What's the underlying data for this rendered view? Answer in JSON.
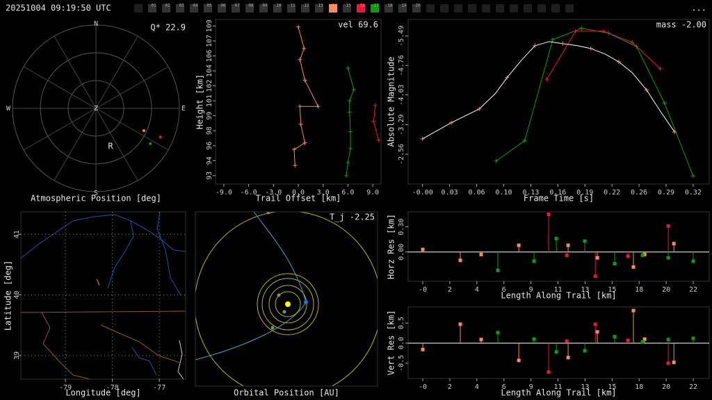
{
  "header": {
    "timestamp": "20251004 09:19:50 UTC",
    "more": "...",
    "cameras": [
      "01",
      "02",
      "03",
      "04",
      "05",
      "06",
      "07",
      "08",
      "09",
      "10",
      "11",
      "12",
      "13",
      "14",
      "15",
      "16",
      "17",
      "18",
      "19",
      "20"
    ],
    "camera_colors": [
      "#333333",
      "#333333",
      "#333333",
      "#333333",
      "#333333",
      "#333333",
      "#333333",
      "#333333",
      "#333333",
      "#333333",
      "#333333",
      "#333333",
      "#333333",
      "#f98a5e",
      "#333333",
      "#e8173d",
      "#139a13",
      "#333333",
      "#333333",
      "#333333"
    ]
  },
  "chart_data": [
    {
      "type": "polar",
      "xlabel": "Atmospheric Position [deg]",
      "annotation": "Q* 22.9",
      "directions": [
        "N",
        "E",
        "S",
        "W"
      ],
      "zenith_label": "Z",
      "rlim": [
        0,
        90
      ],
      "rticks": [
        30,
        60,
        90
      ],
      "radiant": {
        "label": "R",
        "azimuth": 159,
        "zenith": 44
      },
      "series": [
        {
          "color": "#f98a5e",
          "x": [
            115
          ],
          "values": [
            57
          ]
        },
        {
          "color": "#e8173d",
          "x": [
            114
          ],
          "values": [
            76
          ]
        },
        {
          "color": "#139a13",
          "x": [
            123
          ],
          "values": [
            70
          ]
        }
      ]
    },
    {
      "type": "line",
      "xlabel": "Trail Offset [km]",
      "ylabel": "Height [km]",
      "annotation": "vel 69.6",
      "xlim": [
        -10,
        10
      ],
      "ylim": [
        91.9,
        109.5
      ],
      "xticks": [
        {
          "value": -9,
          "label": "-9.0"
        },
        {
          "value": -6,
          "label": "-6.0"
        },
        {
          "value": -3,
          "label": "-3.0"
        },
        {
          "value": 0,
          "label": "0.0"
        },
        {
          "value": 3,
          "label": "3.0"
        },
        {
          "value": 6,
          "label": "6.0"
        },
        {
          "value": 9,
          "label": "9.0"
        }
      ],
      "yticks": [
        {
          "value": 92.8,
          "label": "93"
        },
        {
          "value": 94.4,
          "label": "94"
        },
        {
          "value": 96.0,
          "label": "96"
        },
        {
          "value": 97.6,
          "label": "98"
        },
        {
          "value": 99.2,
          "label": "99"
        },
        {
          "value": 100.8,
          "label": "101"
        },
        {
          "value": 102.4,
          "label": "102"
        },
        {
          "value": 104.0,
          "label": "104"
        },
        {
          "value": 105.6,
          "label": "106"
        },
        {
          "value": 107.2,
          "label": "107"
        },
        {
          "value": 108.8,
          "label": "109"
        }
      ],
      "series": [
        {
          "color": "#f98a5e",
          "line": true,
          "marker": "+",
          "x": [
            0,
            0.7,
            0.2,
            0.8,
            2.4,
            0.2,
            0.3,
            0.8,
            -0.5,
            -0.4
          ],
          "values": [
            108.7,
            106.4,
            105.2,
            103.0,
            100.2,
            100.2,
            98.3,
            96.3,
            95.6,
            93.9
          ]
        },
        {
          "color": "#139a13",
          "line": true,
          "marker": "+",
          "x": [
            6.0,
            6.7,
            6.2,
            6.2,
            6.3,
            6.3,
            6.0,
            5.8
          ],
          "values": [
            104.3,
            102.0,
            100.8,
            99.6,
            97.5,
            95.7,
            94.2,
            92.8
          ]
        },
        {
          "color": "#e8173d",
          "line": true,
          "marker": "+",
          "x": [
            9.3,
            9.1,
            9.7
          ],
          "values": [
            100.3,
            98.6,
            96.6
          ]
        }
      ]
    },
    {
      "type": "line",
      "xlabel": "Frame Time [s]",
      "ylabel": "Absolute Magnitude",
      "annotation": "mass -2.00",
      "xlim": [
        -0.017,
        0.339
      ],
      "ylim": [
        -1.82,
        -5.9
      ],
      "xticks": [
        {
          "value": 0,
          "label": "-0.00"
        },
        {
          "value": 0.032,
          "label": "0.03"
        },
        {
          "value": 0.064,
          "label": "0.06"
        },
        {
          "value": 0.096,
          "label": "0.10"
        },
        {
          "value": 0.128,
          "label": "0.13"
        },
        {
          "value": 0.16,
          "label": "0.16"
        },
        {
          "value": 0.192,
          "label": "0.19"
        },
        {
          "value": 0.224,
          "label": "0.22"
        },
        {
          "value": 0.256,
          "label": "0.26"
        },
        {
          "value": 0.288,
          "label": "0.29"
        },
        {
          "value": 0.32,
          "label": "0.32"
        }
      ],
      "yticks": [
        -5.49,
        -4.76,
        -4.03,
        -3.29,
        -2.56
      ],
      "series": [
        {
          "color": "#139a13",
          "line": true,
          "marker": "+",
          "x": [
            0.087,
            0.121,
            0.154,
            0.188,
            0.22,
            0.253,
            0.286,
            0.32
          ],
          "values": [
            -2.39,
            -2.9,
            -5.4,
            -5.68,
            -5.56,
            -5.23,
            -3.83,
            -2.02
          ]
        },
        {
          "color": "#e8173d",
          "line": true,
          "marker": "+",
          "x": [
            0.147,
            0.181,
            0.214,
            0.248,
            0.281
          ],
          "values": [
            -4.42,
            -5.61,
            -5.61,
            -5.33,
            -4.68
          ]
        },
        {
          "color": "#ffffff",
          "line": true,
          "x": [
            0,
            0.034,
            0.067,
            0.086,
            0.1,
            0.117,
            0.133,
            0.15,
            0.166,
            0.183,
            0.199,
            0.216,
            0.232,
            0.248,
            0.265,
            0.281,
            0.298
          ],
          "values": [
            -2.94,
            -3.34,
            -3.68,
            -4.06,
            -4.46,
            -4.89,
            -5.25,
            -5.35,
            -5.3,
            -5.25,
            -5.18,
            -5.04,
            -4.85,
            -4.58,
            -4.15,
            -3.63,
            -3.11
          ]
        },
        {
          "color": "#f98a5e",
          "line": false,
          "marker": "+",
          "x": [
            0,
            0.034,
            0.067,
            0.1,
            0.133,
            0.166,
            0.199,
            0.232,
            0.265,
            0.298
          ],
          "values": [
            -2.94,
            -3.34,
            -3.68,
            -4.46,
            -5.25,
            -5.3,
            -5.18,
            -4.85,
            -4.15,
            -3.11
          ]
        }
      ]
    },
    {
      "type": "map",
      "xlabel": "Longitude [deg]",
      "ylabel": "Latitude [deg]",
      "grid": true,
      "xlim": [
        -79.95,
        -76.44
      ],
      "ylim": [
        38.61,
        41.37
      ],
      "xticks": [
        -79,
        -78,
        -77
      ],
      "yticks": [
        41,
        40,
        39
      ],
      "series": [
        {
          "color": "#f98a5e",
          "line": true,
          "x": [
            -78.33,
            -78.28
          ],
          "values": [
            40.26,
            40.16
          ]
        }
      ]
    },
    {
      "type": "orbit",
      "xlabel": "Orbital Position [AU]",
      "annotation": "T_j -2.25"
    },
    {
      "type": "stem",
      "xlabel": "Length Along Trail [km]",
      "ylabel": "Horz Res [km]",
      "zero_line": true,
      "xlim": [
        -1.4,
        23.31
      ],
      "ylim": [
        -0.35,
        0.48
      ],
      "xticks": [
        {
          "value": -0.2,
          "label": "-0"
        },
        {
          "value": 2.02,
          "label": "2"
        },
        {
          "value": 4.24,
          "label": "4"
        },
        {
          "value": 6.46,
          "label": "6"
        },
        {
          "value": 8.68,
          "label": "9"
        },
        {
          "value": 10.9,
          "label": "11"
        },
        {
          "value": 13.12,
          "label": "13"
        },
        {
          "value": 15.34,
          "label": "15"
        },
        {
          "value": 17.56,
          "label": "18"
        },
        {
          "value": 19.78,
          "label": "20"
        },
        22
      ],
      "yticks": [
        {
          "value": 0.3,
          "label": "0.30"
        },
        {
          "value": 0,
          "label": "0.00"
        }
      ],
      "series": [
        {
          "color": "#f98a5e",
          "x": [
            -0.2,
            2.88,
            4.59,
            7.68,
            11.73,
            14.13,
            17.09,
            18.01,
            20.41
          ],
          "values": [
            0.03,
            -0.1,
            -0.03,
            0.08,
            0.08,
            -0.07,
            -0.18,
            -0.03,
            0.1
          ]
        },
        {
          "color": "#139a13",
          "x": [
            5.96,
            8.93,
            10.76,
            13.1,
            15.55,
            17.84,
            19.95,
            22.0
          ],
          "values": [
            -0.22,
            -0.11,
            0.16,
            0.13,
            -0.14,
            -0.04,
            -0.07,
            -0.11
          ]
        },
        {
          "color": "#e8173d",
          "x": [
            10.13,
            11.62,
            13.96,
            16.64,
            19.95
          ],
          "values": [
            0.45,
            -0.04,
            -0.29,
            -0.05,
            0.31
          ]
        }
      ]
    },
    {
      "type": "stem",
      "xlabel": "Length Along Trail [km]",
      "ylabel": "Vert Res [km]",
      "zero_line": true,
      "xlim": [
        -1.4,
        23.31
      ],
      "ylim": [
        -0.88,
        0.9
      ],
      "xticks": [
        {
          "value": -0.2,
          "label": "-0"
        },
        {
          "value": 2.02,
          "label": "2"
        },
        {
          "value": 4.24,
          "label": "4"
        },
        {
          "value": 6.46,
          "label": "6"
        },
        {
          "value": 8.68,
          "label": "9"
        },
        {
          "value": 10.9,
          "label": "11"
        },
        {
          "value": 13.12,
          "label": "13"
        },
        {
          "value": 15.34,
          "label": "15"
        },
        {
          "value": 17.56,
          "label": "18"
        },
        {
          "value": 19.78,
          "label": "20"
        },
        22
      ],
      "yticks": [
        0.5,
        {
          "value": 0,
          "label": "0.0"
        },
        -0.5
      ],
      "series": [
        {
          "color": "#f98a5e",
          "x": [
            -0.2,
            2.88,
            4.59,
            7.68,
            11.73,
            14.13,
            17.09,
            18.01,
            20.41
          ],
          "values": [
            -0.16,
            0.47,
            0.09,
            -0.43,
            -0.36,
            0.28,
            0.81,
            0.1,
            -0.48
          ]
        },
        {
          "color": "#139a13",
          "x": [
            5.96,
            8.93,
            10.76,
            13.1,
            15.55,
            17.84,
            19.95,
            22.0
          ],
          "values": [
            0.26,
            0.1,
            -0.22,
            -0.19,
            0.16,
            0.03,
            0.09,
            0.12
          ]
        },
        {
          "color": "#e8173d",
          "x": [
            10.13,
            11.62,
            13.96,
            16.64,
            19.95
          ],
          "values": [
            -0.72,
            0.05,
            0.47,
            0.07,
            -0.5
          ]
        }
      ]
    }
  ]
}
